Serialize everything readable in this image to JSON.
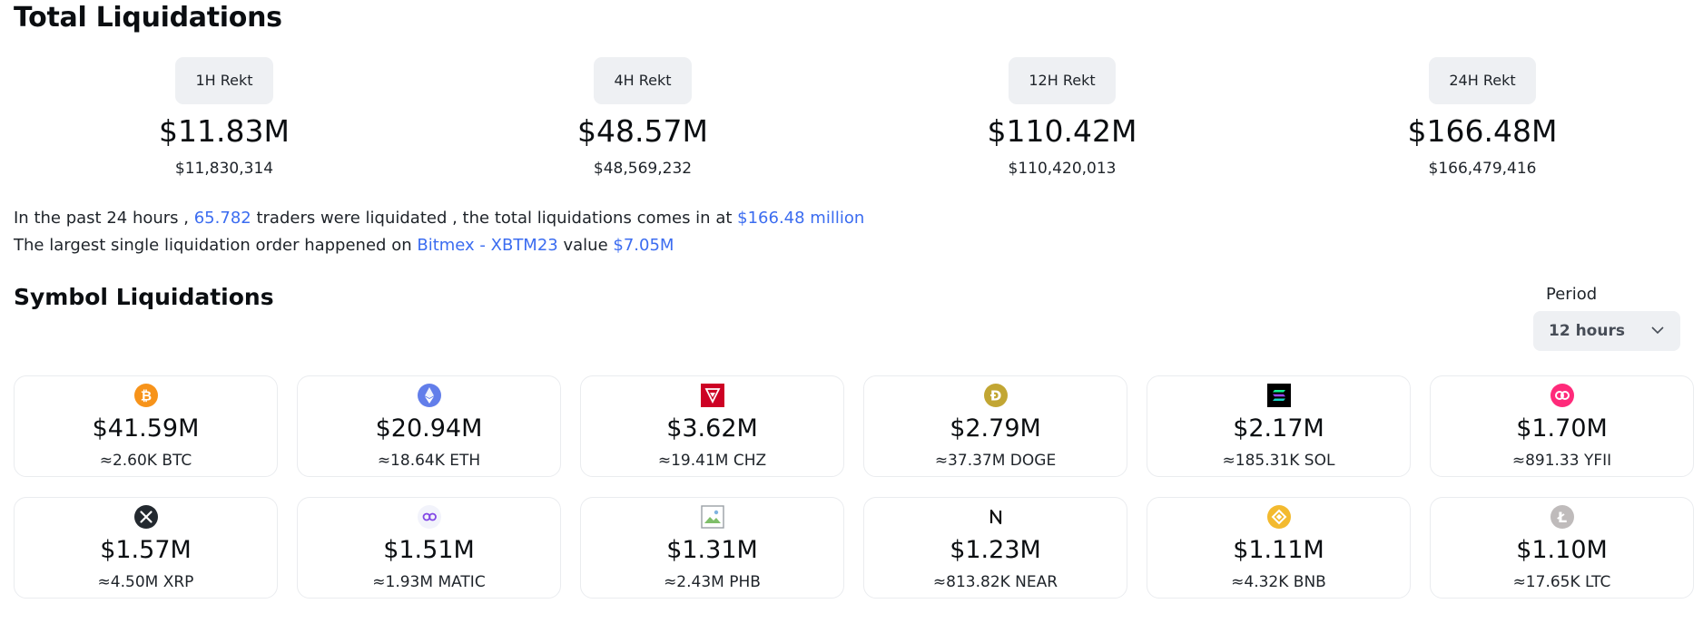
{
  "title": "Total Liquidations",
  "rekt": [
    {
      "label": "1H Rekt",
      "value": "$11.83M",
      "exact": "$11,830,314"
    },
    {
      "label": "4H Rekt",
      "value": "$48.57M",
      "exact": "$48,569,232"
    },
    {
      "label": "12H Rekt",
      "value": "$110.42M",
      "exact": "$110,420,013"
    },
    {
      "label": "24H Rekt",
      "value": "$166.48M",
      "exact": "$166,479,416"
    }
  ],
  "summary": {
    "line1_a": "In the past 24 hours ,",
    "traders": "65.782",
    "line1_b": "traders were liquidated , the total liquidations comes in at",
    "total": "$166.48 million",
    "line2_a": "The largest single liquidation order happened on",
    "exchange": "Bitmex - XBTM23",
    "line2_b": "value",
    "largest": "$7.05M"
  },
  "symbol_title": "Symbol Liquidations",
  "period": {
    "label": "Period",
    "value": "12 hours"
  },
  "symbols": [
    {
      "icon": "btc-icon",
      "usd": "$41.59M",
      "amount": "≈2.60K BTC"
    },
    {
      "icon": "eth-icon",
      "usd": "$20.94M",
      "amount": "≈18.64K ETH"
    },
    {
      "icon": "chz-icon",
      "usd": "$3.62M",
      "amount": "≈19.41M CHZ"
    },
    {
      "icon": "doge-icon",
      "usd": "$2.79M",
      "amount": "≈37.37M DOGE"
    },
    {
      "icon": "sol-icon",
      "usd": "$2.17M",
      "amount": "≈185.31K SOL"
    },
    {
      "icon": "yfii-icon",
      "usd": "$1.70M",
      "amount": "≈891.33 YFII"
    },
    {
      "icon": "xrp-icon",
      "usd": "$1.57M",
      "amount": "≈4.50M XRP"
    },
    {
      "icon": "matic-icon",
      "usd": "$1.51M",
      "amount": "≈1.93M MATIC"
    },
    {
      "icon": "phb-icon",
      "usd": "$1.31M",
      "amount": "≈2.43M PHB"
    },
    {
      "icon": "near-icon",
      "usd": "$1.23M",
      "amount": "≈813.82K NEAR"
    },
    {
      "icon": "bnb-icon",
      "usd": "$1.11M",
      "amount": "≈4.32K BNB"
    },
    {
      "icon": "ltc-icon",
      "usd": "$1.10M",
      "amount": "≈17.65K LTC"
    }
  ],
  "colors": {
    "link": "#3b6cf0",
    "pill_bg": "#eef0f3",
    "card_border": "#eaecef"
  }
}
